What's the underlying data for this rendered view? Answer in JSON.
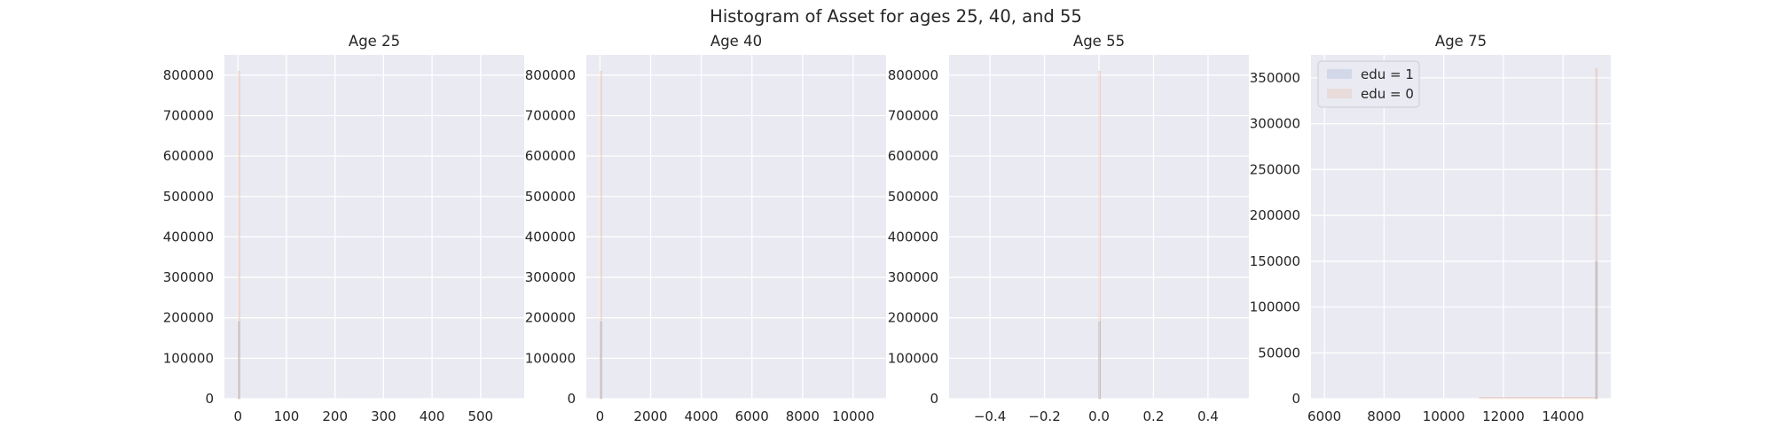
{
  "suptitle": "Histogram of Asset for ages 25, 40, and 55",
  "colors": {
    "figure_bg": "#ffffff",
    "axes_bg": "#eaeaf2",
    "grid": "#ffffff",
    "text": "#262626",
    "edu1": "#4c72b0",
    "edu0": "#dd8452"
  },
  "legend": {
    "placement": "upper-left of Age 75 panel",
    "entries": [
      {
        "label": "edu = 1",
        "color": "#4c72b0"
      },
      {
        "label": "edu = 0",
        "color": "#dd8452"
      }
    ]
  },
  "chart_data": [
    {
      "type": "bar",
      "subtype": "histogram",
      "title": "Age 25",
      "grid": true,
      "xlim": [
        -28,
        590
      ],
      "ylim": [
        0,
        850000
      ],
      "xticks": [
        0,
        100,
        200,
        300,
        400,
        500
      ],
      "yticks": [
        0,
        100000,
        200000,
        300000,
        400000,
        500000,
        600000,
        700000,
        800000
      ],
      "series": [
        {
          "name": "edu = 1",
          "bars": [
            {
              "x0": 0,
              "x1": 1,
              "count": 190000
            }
          ]
        },
        {
          "name": "edu = 0",
          "bars": [
            {
              "x0": 0,
              "x1": 1,
              "count": 810000
            }
          ]
        }
      ]
    },
    {
      "type": "bar",
      "subtype": "histogram",
      "title": "Age 40",
      "grid": true,
      "xlim": [
        -540,
        11300
      ],
      "ylim": [
        0,
        850000
      ],
      "xticks": [
        0,
        2000,
        4000,
        6000,
        8000,
        10000
      ],
      "yticks": [
        0,
        100000,
        200000,
        300000,
        400000,
        500000,
        600000,
        700000,
        800000
      ],
      "series": [
        {
          "name": "edu = 1",
          "bars": [
            {
              "x0": 0,
              "x1": 20,
              "count": 190000
            }
          ]
        },
        {
          "name": "edu = 0",
          "bars": [
            {
              "x0": 0,
              "x1": 20,
              "count": 810000
            }
          ]
        }
      ]
    },
    {
      "type": "bar",
      "subtype": "histogram",
      "title": "Age 55",
      "grid": true,
      "xlim": [
        -0.55,
        0.55
      ],
      "ylim": [
        0,
        850000
      ],
      "xticks": [
        -0.4,
        -0.2,
        0.0,
        0.2,
        0.4
      ],
      "xtick_labels": [
        "−0.4",
        "−0.2",
        "0.0",
        "0.2",
        "0.4"
      ],
      "yticks": [
        0,
        100000,
        200000,
        300000,
        400000,
        500000,
        600000,
        700000,
        800000
      ],
      "series": [
        {
          "name": "edu = 1",
          "bars": [
            {
              "x0": -0.001,
              "x1": 0.001,
              "count": 190000
            }
          ]
        },
        {
          "name": "edu = 0",
          "bars": [
            {
              "x0": -0.001,
              "x1": 0.001,
              "count": 810000
            }
          ]
        }
      ]
    },
    {
      "type": "bar",
      "subtype": "histogram",
      "title": "Age 75",
      "grid": true,
      "xlim": [
        5550,
        15600
      ],
      "ylim": [
        0,
        375000
      ],
      "xticks": [
        6000,
        8000,
        10000,
        12000,
        14000
      ],
      "yticks": [
        0,
        50000,
        100000,
        150000,
        200000,
        250000,
        300000,
        350000
      ],
      "series": [
        {
          "name": "edu = 1",
          "bars": [
            {
              "x0": 15090,
              "x1": 15130,
              "count": 150000
            }
          ]
        },
        {
          "name": "edu = 0",
          "bars": [
            {
              "x0": 11200,
              "x1": 15090,
              "count": 1500
            },
            {
              "x0": 15090,
              "x1": 15130,
              "count": 360000
            }
          ]
        }
      ]
    }
  ]
}
